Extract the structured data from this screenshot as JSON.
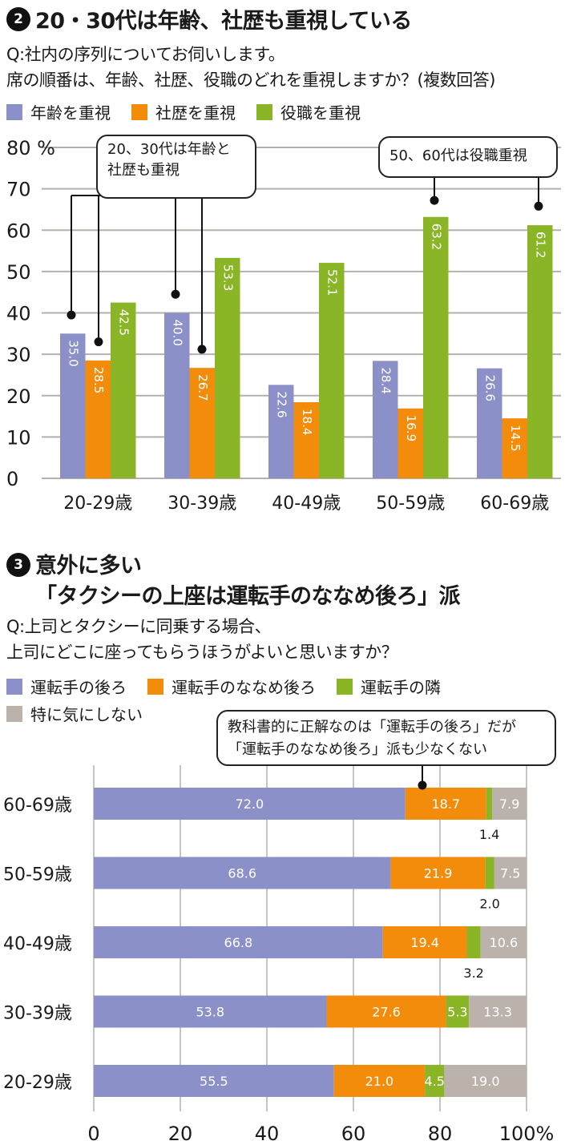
{
  "section2": {
    "number": "2",
    "title": "20・30代は年齢、社歴も重視している",
    "question_line1": "Q:社内の序列についてお伺いします。",
    "question_line2": "席の順番は、年齢、社歴、役職のどれを重視しますか？(複数回答)",
    "legend": [
      {
        "label": "年齢を重視",
        "color": "#8b90c8"
      },
      {
        "label": "社歴を重視",
        "color": "#f28c0a"
      },
      {
        "label": "役職を重視",
        "color": "#8ab526"
      }
    ],
    "callout_left": [
      "20、30代は年齢と",
      "社歴も重視"
    ],
    "callout_right": "50、60代は役職重視"
  },
  "section3": {
    "number": "3",
    "title_line1": "意外に多い",
    "title_line2": "「タクシーの上座は運転手のななめ後ろ」派",
    "question_line1": "Q:上司とタクシーに同乗する場合、",
    "question_line2": "上司にどこに座ってもらうほうがよいと思いますか？",
    "legend": [
      {
        "label": "運転手の後ろ",
        "color": "#8b90c8"
      },
      {
        "label": "運転手のななめ後ろ",
        "color": "#f28c0a"
      },
      {
        "label": "運転手の隣",
        "color": "#8ab526"
      },
      {
        "label": "特に気にしない",
        "color": "#bcb2ac"
      }
    ],
    "callout": [
      "教科書的に正解なのは「運転手の後ろ」だが",
      "「運転手のななめ後ろ」派も少なくない"
    ]
  },
  "chart_data": [
    {
      "type": "bar",
      "title": "20・30代は年齢、社歴も重視している",
      "categories": [
        "20-29歳",
        "30-39歳",
        "40-49歳",
        "50-59歳",
        "60-69歳"
      ],
      "series": [
        {
          "name": "年齢を重視",
          "color": "#8b90c8",
          "values": [
            35.0,
            40.0,
            22.6,
            28.4,
            26.6
          ]
        },
        {
          "name": "社歴を重視",
          "color": "#f28c0a",
          "values": [
            28.5,
            26.7,
            18.4,
            16.9,
            14.5
          ]
        },
        {
          "name": "役職を重視",
          "color": "#8ab526",
          "values": [
            42.5,
            53.3,
            52.1,
            63.2,
            61.2
          ]
        }
      ],
      "yticks": [
        "0",
        "10",
        "20",
        "30",
        "40",
        "50",
        "60",
        "70",
        "80 %"
      ],
      "ylim": [
        0,
        80
      ],
      "xlabel": "",
      "ylabel": "%",
      "grid": true,
      "legend": "top-left"
    },
    {
      "type": "bar",
      "orientation": "horizontal-stacked",
      "title": "「タクシーの上座は運転手のななめ後ろ」派",
      "categories": [
        "60-69歳",
        "50-59歳",
        "40-49歳",
        "30-39歳",
        "20-29歳"
      ],
      "series": [
        {
          "name": "運転手の後ろ",
          "color": "#8b90c8",
          "values": [
            72.0,
            68.6,
            66.8,
            53.8,
            55.5
          ]
        },
        {
          "name": "運転手のななめ後ろ",
          "color": "#f28c0a",
          "values": [
            18.7,
            21.9,
            19.4,
            27.6,
            21.0
          ]
        },
        {
          "name": "運転手の隣",
          "color": "#8ab526",
          "values": [
            1.4,
            2.0,
            3.2,
            5.3,
            4.5
          ]
        },
        {
          "name": "特に気にしない",
          "color": "#bcb2ac",
          "values": [
            7.9,
            7.5,
            10.6,
            13.3,
            19.0
          ]
        }
      ],
      "xticks": [
        "0",
        "20",
        "40",
        "60",
        "80",
        "100%"
      ],
      "xlim": [
        0,
        100
      ],
      "grid": true,
      "legend": "top-left"
    }
  ]
}
